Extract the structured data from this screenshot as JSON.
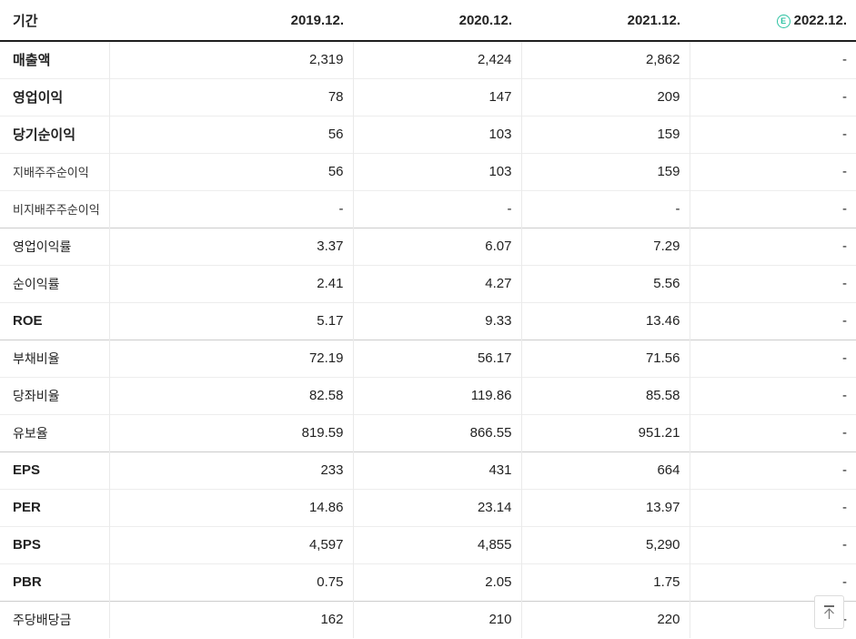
{
  "table": {
    "period_label": "기간",
    "columns": [
      "2019.12.",
      "2020.12.",
      "2021.12.",
      "2022.12."
    ],
    "estimate_badge": "E",
    "rows": [
      {
        "label": "매출액",
        "style": "main",
        "group_start": false,
        "values": [
          "2,319",
          "2,424",
          "2,862",
          "-"
        ]
      },
      {
        "label": "영업이익",
        "style": "main",
        "group_start": false,
        "values": [
          "78",
          "147",
          "209",
          "-"
        ]
      },
      {
        "label": "당기순이익",
        "style": "main",
        "group_start": false,
        "values": [
          "56",
          "103",
          "159",
          "-"
        ]
      },
      {
        "label": "지배주주순이익",
        "style": "sub",
        "group_start": false,
        "values": [
          "56",
          "103",
          "159",
          "-"
        ]
      },
      {
        "label": "비지배주주순이익",
        "style": "sub",
        "group_start": false,
        "values": [
          "-",
          "-",
          "-",
          "-"
        ]
      },
      {
        "label": "영업이익률",
        "style": "normal",
        "group_start": true,
        "values": [
          "3.37",
          "6.07",
          "7.29",
          "-"
        ]
      },
      {
        "label": "순이익률",
        "style": "normal",
        "group_start": false,
        "values": [
          "2.41",
          "4.27",
          "5.56",
          "-"
        ]
      },
      {
        "label": "ROE",
        "style": "main",
        "group_start": false,
        "values": [
          "5.17",
          "9.33",
          "13.46",
          "-"
        ]
      },
      {
        "label": "부채비율",
        "style": "normal",
        "group_start": true,
        "values": [
          "72.19",
          "56.17",
          "71.56",
          "-"
        ]
      },
      {
        "label": "당좌비율",
        "style": "normal",
        "group_start": false,
        "values": [
          "82.58",
          "119.86",
          "85.58",
          "-"
        ]
      },
      {
        "label": "유보율",
        "style": "normal",
        "group_start": false,
        "values": [
          "819.59",
          "866.55",
          "951.21",
          "-"
        ]
      },
      {
        "label": "EPS",
        "style": "main",
        "group_start": true,
        "values": [
          "233",
          "431",
          "664",
          "-"
        ]
      },
      {
        "label": "PER",
        "style": "main",
        "group_start": false,
        "values": [
          "14.86",
          "23.14",
          "13.97",
          "-"
        ]
      },
      {
        "label": "BPS",
        "style": "main",
        "group_start": false,
        "values": [
          "4,597",
          "4,855",
          "5,290",
          "-"
        ]
      },
      {
        "label": "PBR",
        "style": "main",
        "group_start": false,
        "values": [
          "0.75",
          "2.05",
          "1.75",
          "-"
        ]
      },
      {
        "label": "주당배당금",
        "style": "normal",
        "group_start": true,
        "values": [
          "162",
          "210",
          "220",
          "-"
        ]
      }
    ]
  },
  "colors": {
    "estimate_badge": "#2cc2a2"
  }
}
